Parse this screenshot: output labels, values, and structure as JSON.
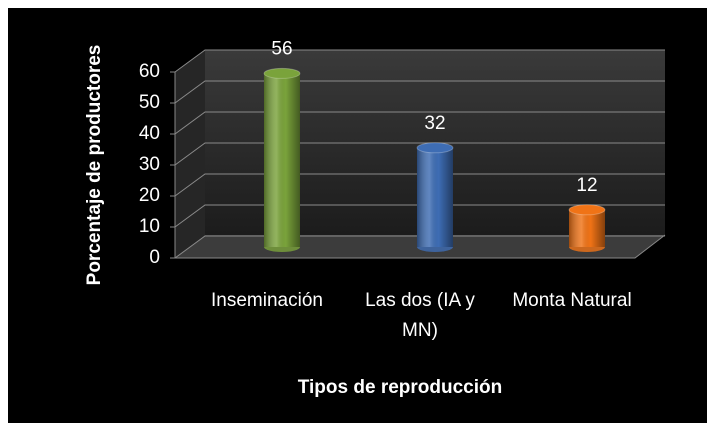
{
  "chart_data": {
    "type": "bar",
    "categories": [
      "Inseminación",
      "Las dos (IA y MN)",
      "Monta Natural"
    ],
    "values": [
      56,
      32,
      12
    ],
    "colors": [
      "#7aa33b",
      "#3e6db4",
      "#f07316"
    ],
    "y_label": "Porcentaje de productores",
    "x_label": "Tipos de reproducción",
    "ylim": [
      0,
      60
    ],
    "yticks": [
      0,
      10,
      20,
      30,
      40,
      50,
      60
    ],
    "grid": true
  }
}
